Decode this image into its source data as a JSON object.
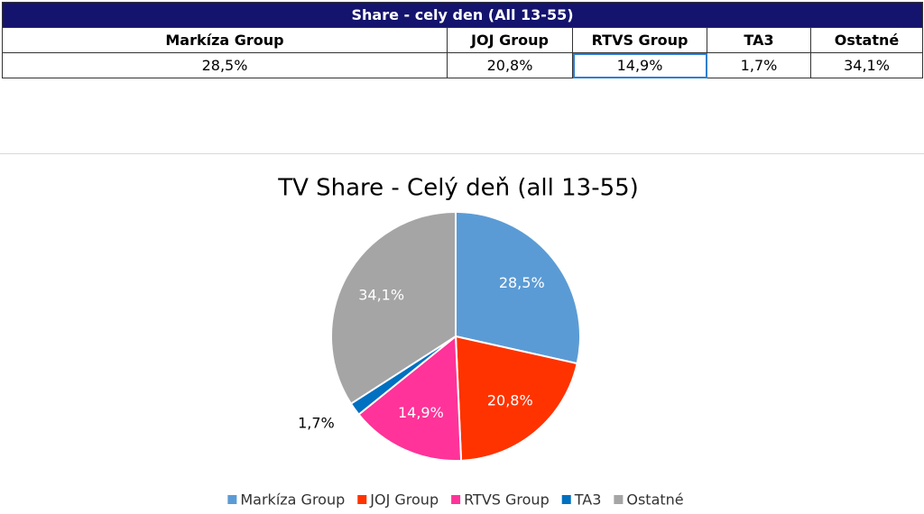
{
  "table": {
    "title": "Share - cely den (All 13-55)",
    "header": [
      "Markíza Group",
      "JOJ Group",
      "RTVS Group",
      "TA3",
      "Ostatné"
    ],
    "rows": [
      [
        "28,5%",
        "20,8%",
        "14,9%",
        "1,7%",
        "34,1%"
      ]
    ]
  },
  "chart_data": {
    "type": "pie",
    "title": "TV Share - Celý deň (all 13-55)",
    "categories": [
      "Markíza Group",
      "JOJ Group",
      "RTVS Group",
      "TA3",
      "Ostatné"
    ],
    "values": [
      28.5,
      20.8,
      14.9,
      1.7,
      34.1
    ],
    "value_labels": [
      "28,5%",
      "20,8%",
      "14,9%",
      "1,7%",
      "34,1%"
    ],
    "colors": [
      "#5b9bd5",
      "#ff3300",
      "#ff3399",
      "#0070c0",
      "#a5a5a5"
    ],
    "legend": "bottom"
  }
}
